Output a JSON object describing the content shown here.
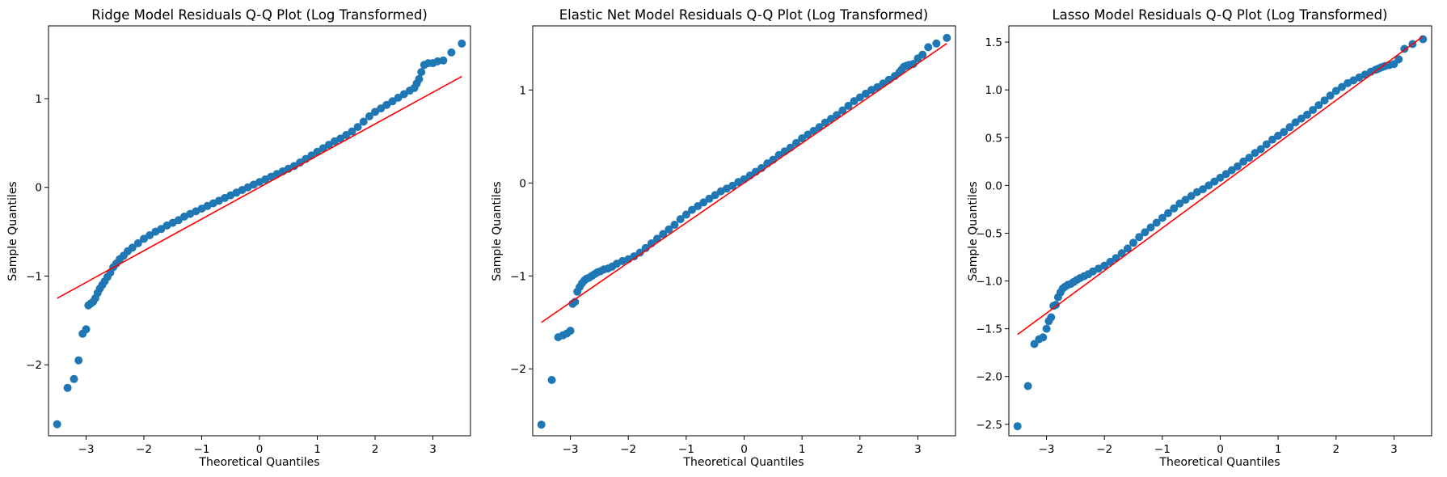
{
  "chart_data": [
    {
      "type": "scatter",
      "title": "Ridge Model Residuals Q-Q Plot (Log Transformed)",
      "xlabel": "Theoretical Quantiles",
      "ylabel": "Sample Quantiles",
      "xlim": [
        -3.65,
        3.65
      ],
      "ylim": [
        -2.8,
        1.82
      ],
      "xticks": [
        -3,
        -2,
        -1,
        0,
        1,
        2,
        3
      ],
      "yticks": [
        -2,
        -1,
        0,
        1
      ],
      "ytick_labels": [
        "−2",
        "−1",
        "0",
        "1"
      ],
      "xtick_labels": [
        "−3",
        "−2",
        "−1",
        "0",
        "1",
        "2",
        "3"
      ],
      "grid": false,
      "colors": {
        "points": "#1f77b4",
        "line": "#ff0000"
      },
      "reference_line": {
        "x": [
          -3.5,
          3.5
        ],
        "y": [
          -1.25,
          1.25
        ]
      },
      "points": {
        "x": [
          -3.5,
          -3.32,
          -3.21,
          -3.13,
          -3.06,
          -3.0,
          -2.96,
          -2.92,
          -2.88,
          -2.84,
          -2.8,
          -2.76,
          -2.72,
          -2.68,
          -2.63,
          -2.58,
          -2.53,
          -2.48,
          -2.42,
          -2.35,
          -2.28,
          -2.2,
          -2.1,
          -2.0,
          -1.9,
          -1.8,
          -1.7,
          -1.6,
          -1.5,
          -1.4,
          -1.3,
          -1.2,
          -1.1,
          -1.0,
          -0.9,
          -0.8,
          -0.7,
          -0.6,
          -0.5,
          -0.4,
          -0.3,
          -0.2,
          -0.1,
          0.0,
          0.1,
          0.2,
          0.3,
          0.4,
          0.5,
          0.6,
          0.7,
          0.8,
          0.9,
          1.0,
          1.1,
          1.2,
          1.3,
          1.4,
          1.5,
          1.6,
          1.7,
          1.8,
          1.9,
          2.0,
          2.1,
          2.2,
          2.3,
          2.4,
          2.5,
          2.6,
          2.68,
          2.72,
          2.76,
          2.8,
          2.85,
          2.92,
          3.0,
          3.08,
          3.18,
          3.32,
          3.5
        ],
        "y": [
          -2.67,
          -2.26,
          -2.16,
          -1.95,
          -1.65,
          -1.6,
          -1.33,
          -1.31,
          -1.29,
          -1.25,
          -1.19,
          -1.14,
          -1.1,
          -1.06,
          -1.01,
          -0.96,
          -0.9,
          -0.86,
          -0.81,
          -0.77,
          -0.72,
          -0.68,
          -0.63,
          -0.58,
          -0.54,
          -0.5,
          -0.47,
          -0.43,
          -0.4,
          -0.37,
          -0.33,
          -0.3,
          -0.27,
          -0.24,
          -0.21,
          -0.18,
          -0.15,
          -0.12,
          -0.09,
          -0.06,
          -0.03,
          0.0,
          0.03,
          0.06,
          0.09,
          0.12,
          0.15,
          0.18,
          0.21,
          0.24,
          0.28,
          0.32,
          0.36,
          0.4,
          0.44,
          0.48,
          0.52,
          0.55,
          0.59,
          0.63,
          0.68,
          0.74,
          0.8,
          0.85,
          0.89,
          0.93,
          0.97,
          1.01,
          1.05,
          1.09,
          1.12,
          1.17,
          1.22,
          1.3,
          1.38,
          1.4,
          1.4,
          1.42,
          1.43,
          1.52,
          1.62
        ]
      }
    },
    {
      "type": "scatter",
      "title": "Elastic Net Model Residuals Q-Q Plot (Log Transformed)",
      "xlabel": "Theoretical Quantiles",
      "ylabel": "Sample Quantiles",
      "xlim": [
        -3.65,
        3.65
      ],
      "ylim": [
        -2.72,
        1.69
      ],
      "xticks": [
        -3,
        -2,
        -1,
        0,
        1,
        2,
        3
      ],
      "yticks": [
        -2,
        -1,
        0,
        1
      ],
      "ytick_labels": [
        "−2",
        "−1",
        "0",
        "1"
      ],
      "xtick_labels": [
        "−3",
        "−2",
        "−1",
        "0",
        "1",
        "2",
        "3"
      ],
      "grid": false,
      "colors": {
        "points": "#1f77b4",
        "line": "#ff0000"
      },
      "reference_line": {
        "x": [
          -3.5,
          3.5
        ],
        "y": [
          -1.5,
          1.5
        ]
      },
      "points": {
        "x": [
          -3.5,
          -3.32,
          -3.21,
          -3.13,
          -3.06,
          -3.0,
          -2.96,
          -2.92,
          -2.88,
          -2.84,
          -2.8,
          -2.76,
          -2.72,
          -2.68,
          -2.63,
          -2.58,
          -2.53,
          -2.48,
          -2.42,
          -2.35,
          -2.28,
          -2.2,
          -2.1,
          -2.0,
          -1.9,
          -1.8,
          -1.7,
          -1.6,
          -1.5,
          -1.4,
          -1.3,
          -1.2,
          -1.1,
          -1.0,
          -0.9,
          -0.8,
          -0.7,
          -0.6,
          -0.5,
          -0.4,
          -0.3,
          -0.2,
          -0.1,
          0.0,
          0.1,
          0.2,
          0.3,
          0.4,
          0.5,
          0.6,
          0.7,
          0.8,
          0.9,
          1.0,
          1.1,
          1.2,
          1.3,
          1.4,
          1.5,
          1.6,
          1.7,
          1.8,
          1.9,
          2.0,
          2.1,
          2.2,
          2.3,
          2.4,
          2.5,
          2.6,
          2.68,
          2.72,
          2.76,
          2.8,
          2.85,
          2.92,
          3.0,
          3.08,
          3.18,
          3.32,
          3.5
        ],
        "y": [
          -2.6,
          -2.12,
          -1.66,
          -1.64,
          -1.62,
          -1.59,
          -1.3,
          -1.28,
          -1.17,
          -1.12,
          -1.08,
          -1.05,
          -1.03,
          -1.02,
          -1.0,
          -0.98,
          -0.96,
          -0.95,
          -0.93,
          -0.92,
          -0.9,
          -0.87,
          -0.84,
          -0.82,
          -0.79,
          -0.75,
          -0.7,
          -0.65,
          -0.6,
          -0.55,
          -0.5,
          -0.45,
          -0.39,
          -0.34,
          -0.29,
          -0.25,
          -0.21,
          -0.17,
          -0.13,
          -0.09,
          -0.06,
          -0.03,
          0.01,
          0.04,
          0.08,
          0.12,
          0.16,
          0.21,
          0.25,
          0.3,
          0.34,
          0.38,
          0.43,
          0.48,
          0.52,
          0.56,
          0.6,
          0.65,
          0.69,
          0.73,
          0.78,
          0.83,
          0.88,
          0.92,
          0.96,
          1.0,
          1.03,
          1.07,
          1.11,
          1.15,
          1.19,
          1.22,
          1.25,
          1.26,
          1.27,
          1.28,
          1.34,
          1.38,
          1.46,
          1.5,
          1.56
        ]
      }
    },
    {
      "type": "scatter",
      "title": "Lasso Model Residuals Q-Q Plot (Log Transformed)",
      "xlabel": "Theoretical Quantiles",
      "ylabel": "Sample Quantiles",
      "xlim": [
        -3.65,
        3.65
      ],
      "ylim": [
        -2.62,
        1.67
      ],
      "xticks": [
        -3,
        -2,
        -1,
        0,
        1,
        2,
        3
      ],
      "yticks": [
        -2.5,
        -2.0,
        -1.5,
        -1.0,
        -0.5,
        0.0,
        0.5,
        1.0,
        1.5
      ],
      "ytick_labels": [
        "−2.5",
        "−2.0",
        "−1.5",
        "−1.0",
        "−0.5",
        "0.0",
        "0.5",
        "1.0",
        "1.5"
      ],
      "xtick_labels": [
        "−3",
        "−2",
        "−1",
        "0",
        "1",
        "2",
        "3"
      ],
      "grid": false,
      "colors": {
        "points": "#1f77b4",
        "line": "#ff0000"
      },
      "reference_line": {
        "x": [
          -3.5,
          3.5
        ],
        "y": [
          -1.56,
          1.56
        ]
      },
      "points": {
        "x": [
          -3.5,
          -3.32,
          -3.21,
          -3.13,
          -3.06,
          -3.0,
          -2.96,
          -2.92,
          -2.88,
          -2.84,
          -2.8,
          -2.76,
          -2.72,
          -2.68,
          -2.63,
          -2.58,
          -2.53,
          -2.48,
          -2.42,
          -2.35,
          -2.28,
          -2.2,
          -2.1,
          -2.0,
          -1.9,
          -1.8,
          -1.7,
          -1.6,
          -1.5,
          -1.4,
          -1.3,
          -1.2,
          -1.1,
          -1.0,
          -0.9,
          -0.8,
          -0.7,
          -0.6,
          -0.5,
          -0.4,
          -0.3,
          -0.2,
          -0.1,
          0.0,
          0.1,
          0.2,
          0.3,
          0.4,
          0.5,
          0.6,
          0.7,
          0.8,
          0.9,
          1.0,
          1.1,
          1.2,
          1.3,
          1.4,
          1.5,
          1.6,
          1.7,
          1.8,
          1.9,
          2.0,
          2.1,
          2.2,
          2.3,
          2.4,
          2.5,
          2.6,
          2.68,
          2.72,
          2.76,
          2.8,
          2.85,
          2.92,
          3.0,
          3.08,
          3.18,
          3.32,
          3.5
        ],
        "y": [
          -2.52,
          -2.1,
          -1.66,
          -1.61,
          -1.59,
          -1.5,
          -1.42,
          -1.38,
          -1.26,
          -1.25,
          -1.17,
          -1.12,
          -1.08,
          -1.06,
          -1.04,
          -1.03,
          -1.01,
          -0.99,
          -0.97,
          -0.95,
          -0.93,
          -0.9,
          -0.87,
          -0.84,
          -0.8,
          -0.76,
          -0.71,
          -0.66,
          -0.6,
          -0.54,
          -0.49,
          -0.44,
          -0.39,
          -0.34,
          -0.29,
          -0.24,
          -0.19,
          -0.15,
          -0.11,
          -0.07,
          -0.04,
          0.0,
          0.04,
          0.08,
          0.12,
          0.16,
          0.2,
          0.25,
          0.29,
          0.34,
          0.38,
          0.43,
          0.48,
          0.52,
          0.56,
          0.61,
          0.66,
          0.7,
          0.74,
          0.79,
          0.84,
          0.89,
          0.94,
          0.99,
          1.03,
          1.07,
          1.1,
          1.13,
          1.16,
          1.19,
          1.21,
          1.22,
          1.23,
          1.24,
          1.25,
          1.26,
          1.27,
          1.32,
          1.43,
          1.48,
          1.53
        ]
      }
    }
  ]
}
